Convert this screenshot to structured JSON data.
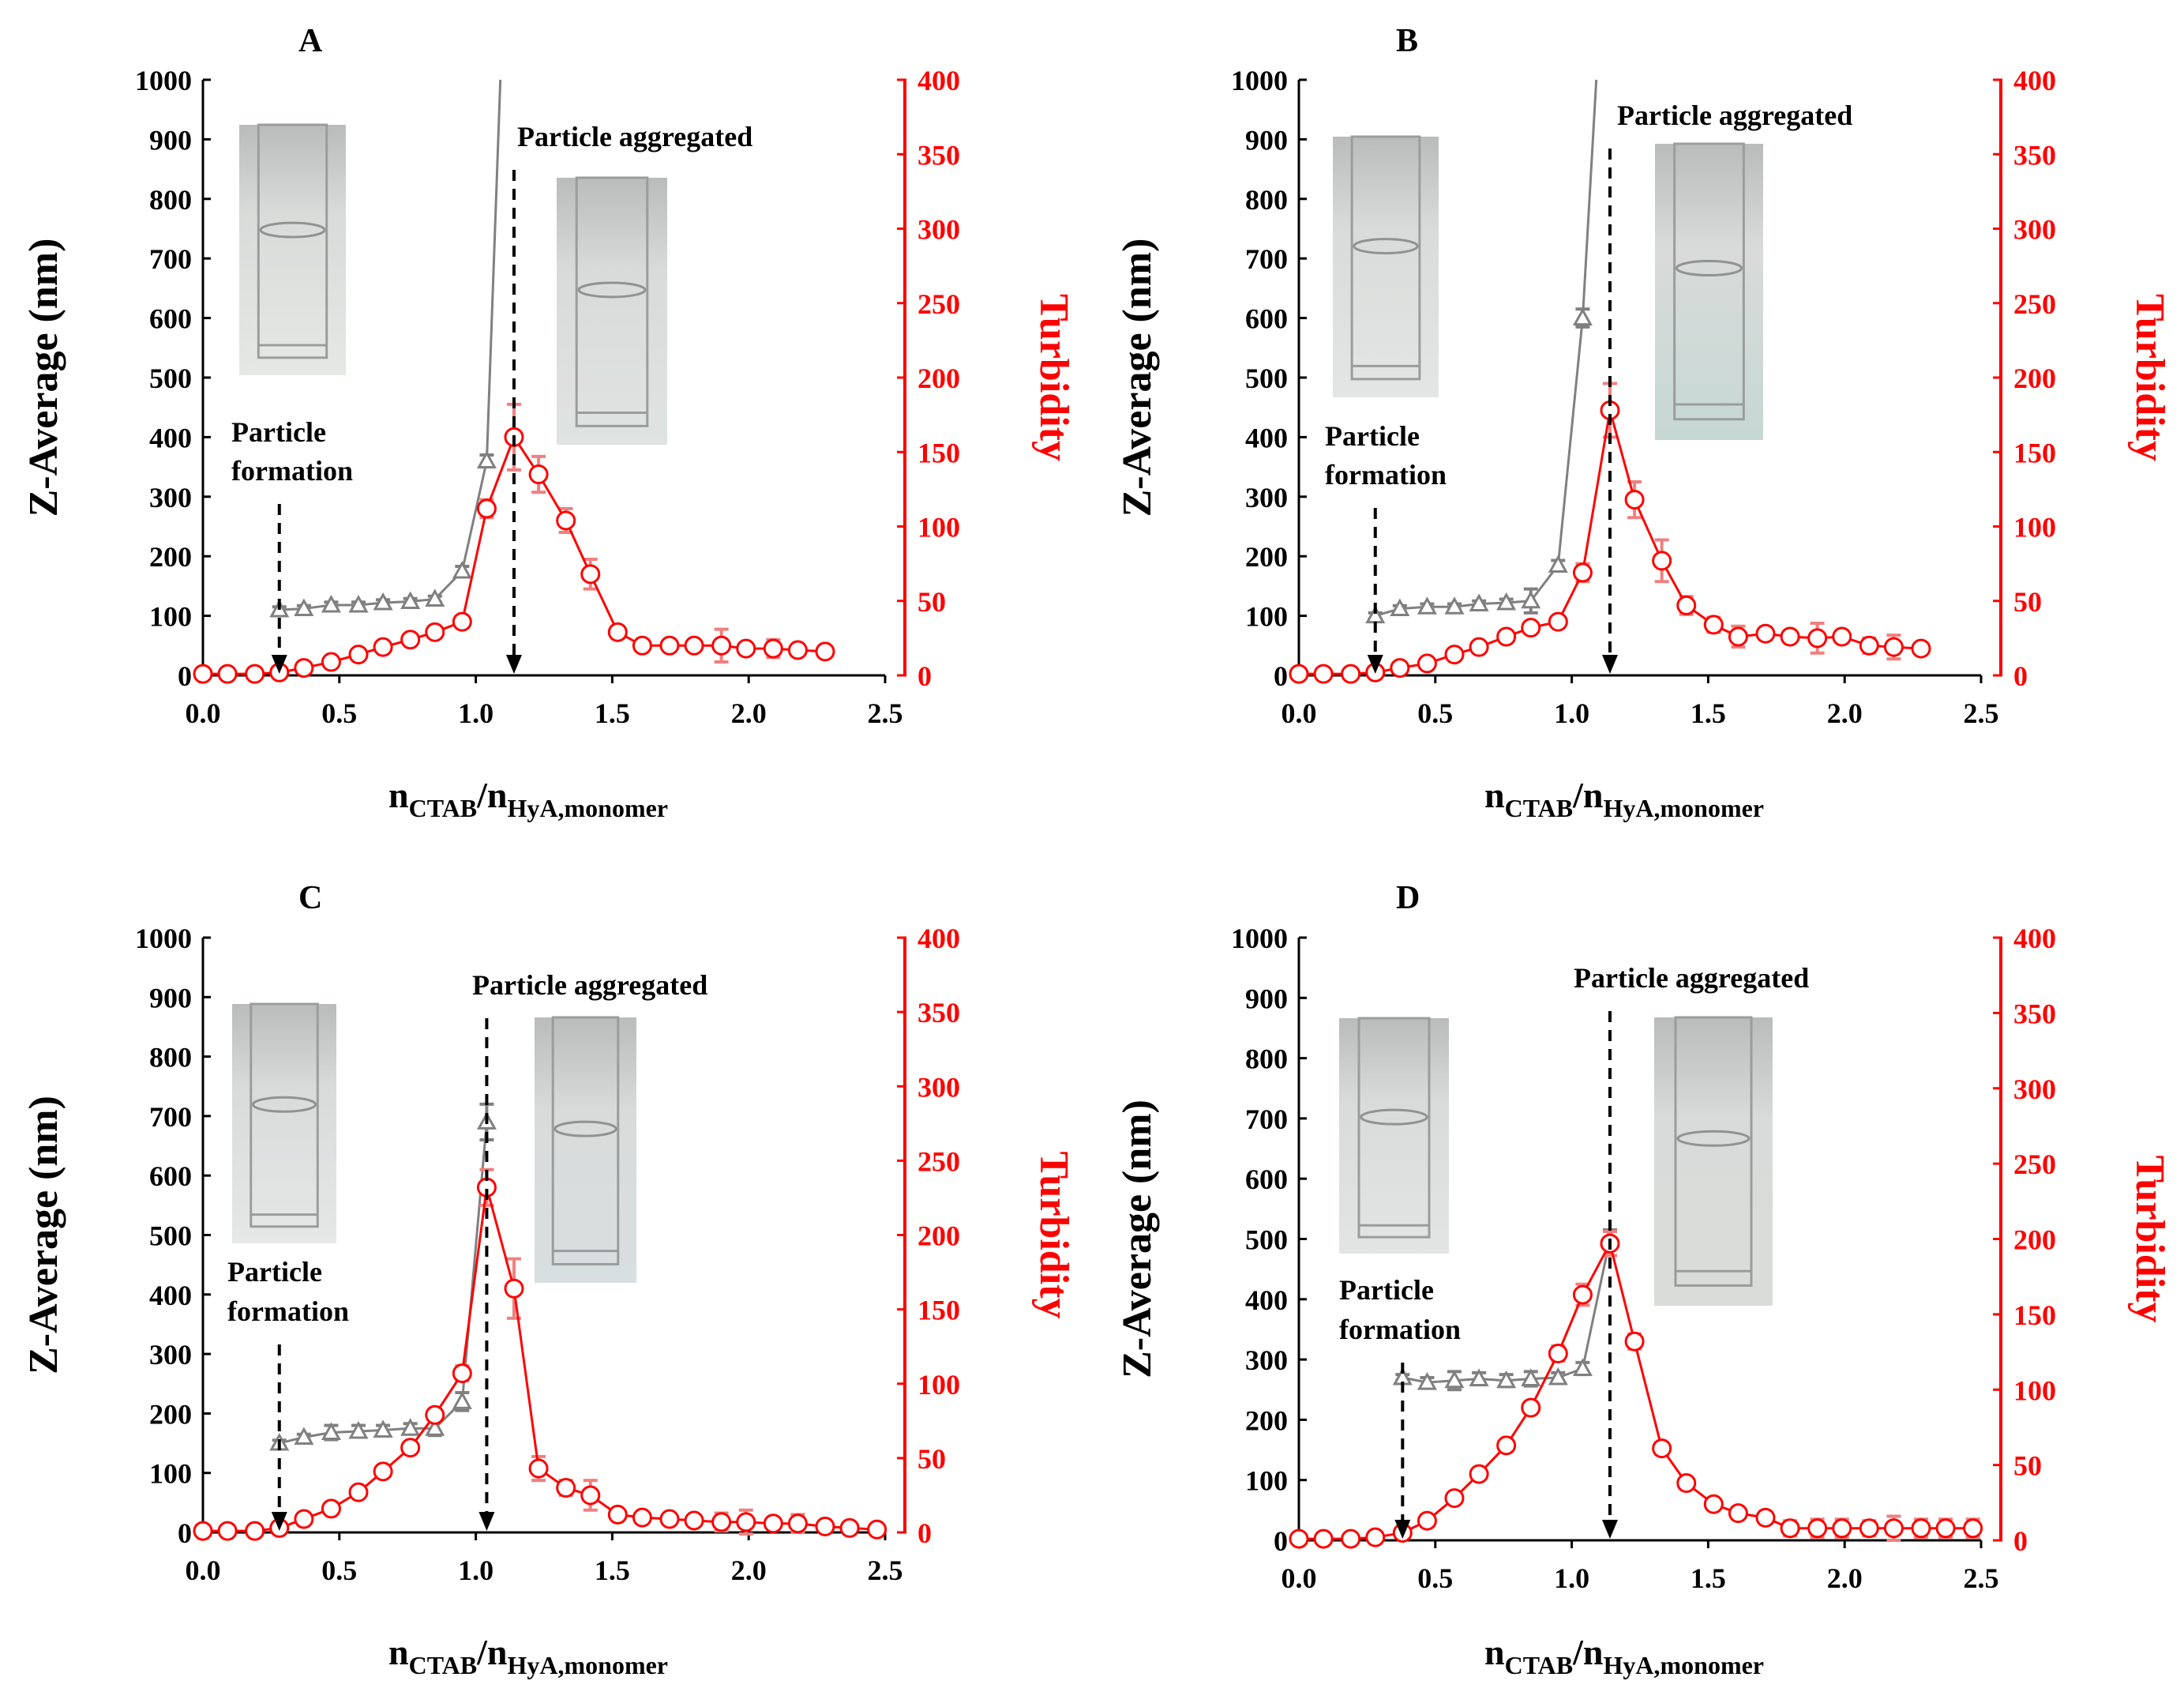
{
  "figure": {
    "colors": {
      "zavg": "#808080",
      "turb": "#ff0000",
      "turb_err": "#f08080",
      "axis": "#000000",
      "right_axis": "#ff0000"
    }
  },
  "chart_data": [
    {
      "panel": "A",
      "type": "line",
      "title": "A",
      "xlabel_main": "n",
      "xlabel_sub1": "CTAB",
      "xlabel_sep": "/n",
      "xlabel_sub2": "HyA,monomer",
      "ylabel_left": "Z-Average  (nm)",
      "ylabel_right": "Turbidity",
      "xlim": [
        0,
        2.5
      ],
      "ylim_left": [
        0,
        1000
      ],
      "ylim_right": [
        0,
        400
      ],
      "xticks": [
        "0.0",
        "0.5",
        "1.0",
        "1.5",
        "2.0",
        "2.5"
      ],
      "yticks_left": [
        "0",
        "100",
        "200",
        "300",
        "400",
        "500",
        "600",
        "700",
        "800",
        "900",
        "1000"
      ],
      "yticks_right": [
        "0",
        "50",
        "100",
        "150",
        "200",
        "250",
        "300",
        "350",
        "400"
      ],
      "annotations": {
        "formation_line1": "Particle",
        "formation_line2": "formation",
        "aggregated": "Particle aggregated"
      },
      "formation_x": 0.28,
      "aggregated_x": 1.14,
      "photo_tint": [
        "#e6e8e6",
        "#dfe3e1"
      ],
      "series": [
        {
          "name": "Z-Average",
          "axis": "left",
          "marker": "triangle",
          "x": [
            0.28,
            0.37,
            0.47,
            0.57,
            0.66,
            0.76,
            0.85,
            0.95,
            1.04,
            1.09
          ],
          "y": [
            110,
            112,
            118,
            118,
            122,
            124,
            128,
            175,
            360,
            1000
          ],
          "err": [
            5,
            5,
            5,
            5,
            5,
            5,
            5,
            8,
            10,
            0
          ]
        },
        {
          "name": "Turbidity",
          "axis": "right",
          "marker": "circle",
          "x": [
            0.0,
            0.09,
            0.19,
            0.28,
            0.37,
            0.47,
            0.57,
            0.66,
            0.76,
            0.85,
            0.95,
            1.04,
            1.14,
            1.23,
            1.33,
            1.42,
            1.52,
            1.61,
            1.71,
            1.8,
            1.9,
            1.99,
            2.09,
            2.18,
            2.28
          ],
          "y": [
            1,
            1,
            1,
            2,
            5,
            9,
            14,
            19,
            24,
            29,
            36,
            112,
            160,
            135,
            104,
            68,
            29,
            20,
            20,
            20,
            20,
            18,
            18,
            17,
            16
          ],
          "err": [
            1,
            1,
            1,
            1,
            1,
            1,
            1,
            1,
            2,
            2,
            3,
            6,
            22,
            12,
            8,
            10,
            4,
            3,
            3,
            3,
            11,
            3,
            6,
            3,
            3
          ]
        }
      ]
    },
    {
      "panel": "B",
      "type": "line",
      "title": "B",
      "xlabel_main": "n",
      "xlabel_sub1": "CTAB",
      "xlabel_sep": "/n",
      "xlabel_sub2": "HyA,monomer",
      "ylabel_left": "Z-Average  (nm)",
      "ylabel_right": "Turbidity",
      "xlim": [
        0,
        2.5
      ],
      "ylim_left": [
        0,
        1000
      ],
      "ylim_right": [
        0,
        400
      ],
      "xticks": [
        "0.0",
        "0.5",
        "1.0",
        "1.5",
        "2.0",
        "2.5"
      ],
      "yticks_left": [
        "0",
        "100",
        "200",
        "300",
        "400",
        "500",
        "600",
        "700",
        "800",
        "900",
        "1000"
      ],
      "yticks_right": [
        "0",
        "50",
        "100",
        "150",
        "200",
        "250",
        "300",
        "350",
        "400"
      ],
      "annotations": {
        "formation_line1": "Particle",
        "formation_line2": "formation",
        "aggregated": "Particle aggregated"
      },
      "formation_x": 0.28,
      "aggregated_x": 1.14,
      "photo_tint": [
        "#e4e6e5",
        "#c6d8d4"
      ],
      "series": [
        {
          "name": "Z-Average",
          "axis": "left",
          "marker": "triangle",
          "x": [
            0.28,
            0.37,
            0.47,
            0.57,
            0.66,
            0.76,
            0.85,
            0.95,
            1.04,
            1.09
          ],
          "y": [
            100,
            112,
            115,
            115,
            120,
            122,
            125,
            185,
            600,
            1000
          ],
          "err": [
            5,
            5,
            5,
            5,
            5,
            6,
            20,
            8,
            15,
            0
          ]
        },
        {
          "name": "Turbidity",
          "axis": "right",
          "marker": "circle",
          "x": [
            0.0,
            0.09,
            0.19,
            0.28,
            0.37,
            0.47,
            0.57,
            0.66,
            0.76,
            0.85,
            0.95,
            1.04,
            1.14,
            1.23,
            1.33,
            1.42,
            1.52,
            1.61,
            1.71,
            1.8,
            1.9,
            1.99,
            2.09,
            2.18,
            2.28
          ],
          "y": [
            1,
            1,
            1,
            2,
            5,
            8,
            14,
            19,
            26,
            32,
            36,
            69,
            178,
            118,
            77,
            47,
            34,
            26,
            28,
            26,
            25,
            26,
            20,
            19,
            18
          ],
          "err": [
            1,
            1,
            1,
            1,
            1,
            1,
            1,
            1,
            2,
            3,
            3,
            6,
            18,
            12,
            14,
            6,
            5,
            7,
            4,
            4,
            10,
            4,
            5,
            8,
            3
          ]
        }
      ]
    },
    {
      "panel": "C",
      "type": "line",
      "title": "C",
      "xlabel_main": "n",
      "xlabel_sub1": "CTAB",
      "xlabel_sep": "/n",
      "xlabel_sub2": "HyA,monomer",
      "ylabel_left": "Z-Average  (nm)",
      "ylabel_right": "Turbidity",
      "xlim": [
        0,
        2.5
      ],
      "ylim_left": [
        0,
        1000
      ],
      "ylim_right": [
        0,
        400
      ],
      "xticks": [
        "0.0",
        "0.5",
        "1.0",
        "1.5",
        "2.0",
        "2.5"
      ],
      "yticks_left": [
        "0",
        "100",
        "200",
        "300",
        "400",
        "500",
        "600",
        "700",
        "800",
        "900",
        "1000"
      ],
      "yticks_right": [
        "0",
        "50",
        "100",
        "150",
        "200",
        "250",
        "300",
        "350",
        "400"
      ],
      "annotations": {
        "formation_line1": "Particle",
        "formation_line2": "formation",
        "aggregated": "Particle aggregated"
      },
      "formation_x": 0.28,
      "aggregated_x": 1.04,
      "photo_tint": [
        "#e6e8e7",
        "#d8dfe0"
      ],
      "series": [
        {
          "name": "Z-Average",
          "axis": "left",
          "marker": "triangle",
          "x": [
            0.28,
            0.37,
            0.47,
            0.57,
            0.66,
            0.76,
            0.85,
            0.95,
            1.04
          ],
          "y": [
            150,
            160,
            168,
            170,
            172,
            175,
            175,
            220,
            690
          ],
          "err": [
            5,
            5,
            12,
            10,
            8,
            8,
            12,
            15,
            30
          ]
        },
        {
          "name": "Turbidity",
          "axis": "right",
          "marker": "circle",
          "x": [
            0.0,
            0.09,
            0.19,
            0.28,
            0.37,
            0.47,
            0.57,
            0.66,
            0.76,
            0.85,
            0.95,
            1.04,
            1.14,
            1.23,
            1.33,
            1.42,
            1.52,
            1.61,
            1.71,
            1.8,
            1.9,
            1.99,
            2.09,
            2.18,
            2.28,
            2.37,
            2.47
          ],
          "y": [
            1,
            1,
            1,
            3,
            9,
            16,
            27,
            41,
            57,
            79,
            107,
            232,
            164,
            43,
            30,
            25,
            12,
            10,
            9,
            8,
            7,
            7,
            6,
            6,
            4,
            3,
            2
          ],
          "err": [
            1,
            1,
            1,
            1,
            1,
            2,
            2,
            3,
            3,
            4,
            5,
            12,
            20,
            8,
            5,
            10,
            3,
            2,
            2,
            2,
            6,
            8,
            3,
            6,
            3,
            2,
            2
          ]
        }
      ]
    },
    {
      "panel": "D",
      "type": "line",
      "title": "D",
      "xlabel_main": "n",
      "xlabel_sub1": "CTAB",
      "xlabel_sep": "/n",
      "xlabel_sub2": "HyA,monomer",
      "ylabel_left": "Z-Average  (nm)",
      "ylabel_right": "Turbidity",
      "xlim": [
        0,
        2.5
      ],
      "ylim_left": [
        0,
        1000
      ],
      "ylim_right": [
        0,
        400
      ],
      "xticks": [
        "0.0",
        "0.5",
        "1.0",
        "1.5",
        "2.0",
        "2.5"
      ],
      "yticks_left": [
        "0",
        "100",
        "200",
        "300",
        "400",
        "500",
        "600",
        "700",
        "800",
        "900",
        "1000"
      ],
      "yticks_right": [
        "0",
        "50",
        "100",
        "150",
        "200",
        "250",
        "300",
        "350",
        "400"
      ],
      "annotations": {
        "formation_line1": "Particle",
        "formation_line2": "formation",
        "aggregated": "Particle aggregated"
      },
      "formation_x": 0.38,
      "aggregated_x": 1.14,
      "photo_tint": [
        "#e3e5e4",
        "#d9dcd8"
      ],
      "series": [
        {
          "name": "Z-Average",
          "axis": "left",
          "marker": "triangle",
          "x": [
            0.38,
            0.47,
            0.57,
            0.66,
            0.76,
            0.85,
            0.95,
            1.04,
            1.14
          ],
          "y": [
            270,
            262,
            265,
            268,
            265,
            268,
            270,
            285,
            500
          ],
          "err": [
            5,
            8,
            15,
            10,
            10,
            12,
            8,
            10,
            15
          ]
        },
        {
          "name": "Turbidity",
          "axis": "right",
          "marker": "circle",
          "x": [
            0.0,
            0.09,
            0.19,
            0.28,
            0.38,
            0.47,
            0.57,
            0.66,
            0.76,
            0.85,
            0.95,
            1.04,
            1.14,
            1.23,
            1.33,
            1.42,
            1.52,
            1.61,
            1.71,
            1.8,
            1.9,
            1.99,
            2.09,
            2.18,
            2.28,
            2.37,
            2.47
          ],
          "y": [
            1,
            1,
            1,
            2,
            5,
            13,
            28,
            44,
            63,
            88,
            124,
            163,
            197,
            132,
            61,
            38,
            24,
            18,
            15,
            8,
            8,
            8,
            8,
            8,
            8,
            8,
            8
          ],
          "err": [
            1,
            1,
            1,
            1,
            1,
            1,
            2,
            2,
            3,
            4,
            5,
            7,
            8,
            5,
            4,
            3,
            3,
            3,
            4,
            5,
            6,
            6,
            5,
            8,
            6,
            6,
            6
          ]
        }
      ]
    }
  ]
}
